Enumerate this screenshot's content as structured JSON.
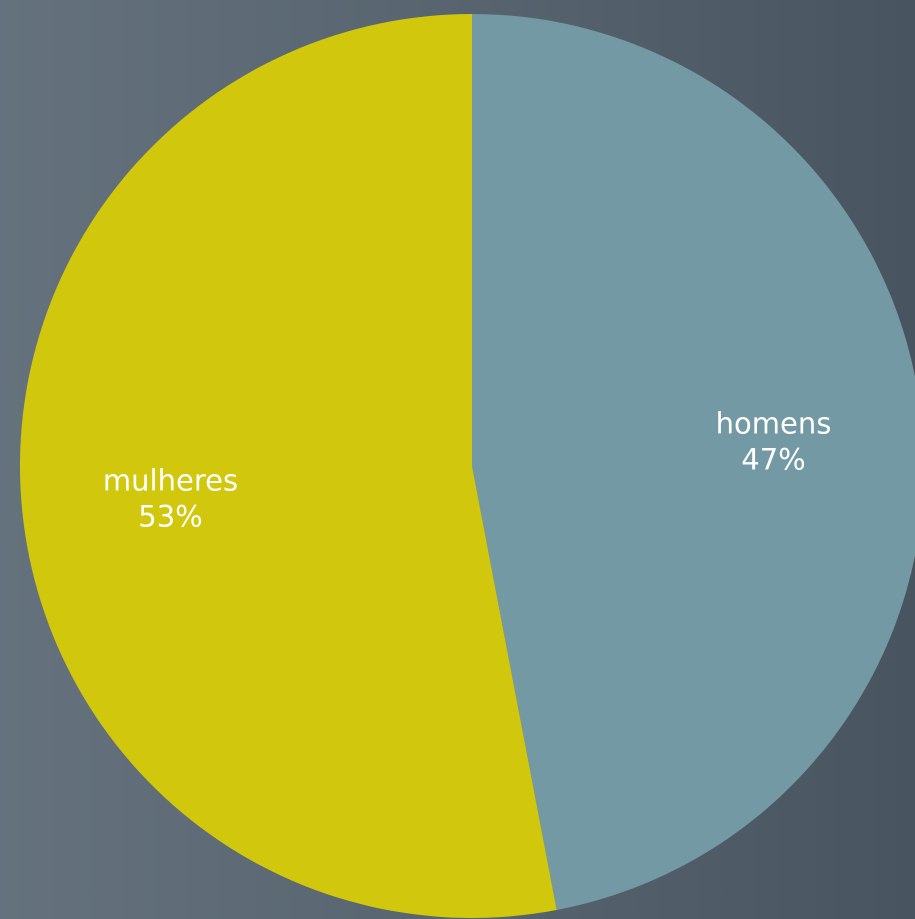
{
  "chart_data": {
    "type": "pie",
    "categories": [
      "homens",
      "mulheres"
    ],
    "values": [
      47,
      53
    ],
    "value_labels": [
      "47%",
      "53%"
    ],
    "colors": [
      "#7399a4",
      "#d1c70d"
    ],
    "start_angle_deg": 0,
    "direction": "clockwise",
    "labels_inside": true,
    "legend": "none"
  }
}
